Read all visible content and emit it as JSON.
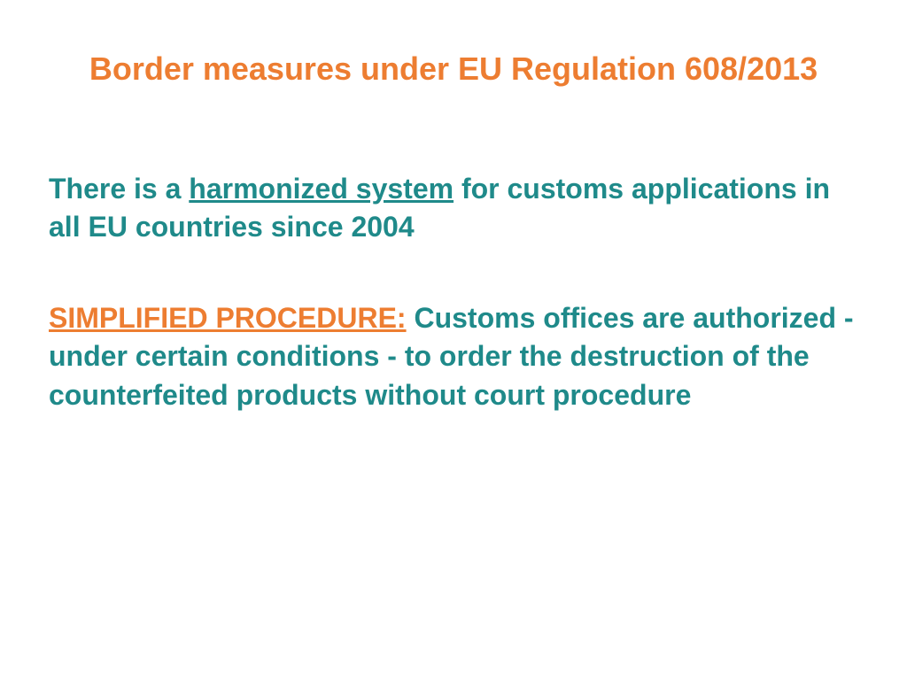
{
  "colors": {
    "orange": "#ed7d31",
    "teal": "#1f8a8a",
    "background": "#ffffff"
  },
  "fonts": {
    "title_size": "36px",
    "body_size": "32px"
  },
  "title": "Border measures under EU Regulation 608/2013",
  "para1": {
    "pre": "There is a ",
    "underlined": "harmonized system",
    "post": " for customs applications in all EU countries since 2004"
  },
  "para2": {
    "label": "SIMPLIFIED PROCEDURE:",
    "rest": " Customs offices are authorized - under certain conditions - to order the destruction of the counterfeited products without court procedure"
  }
}
